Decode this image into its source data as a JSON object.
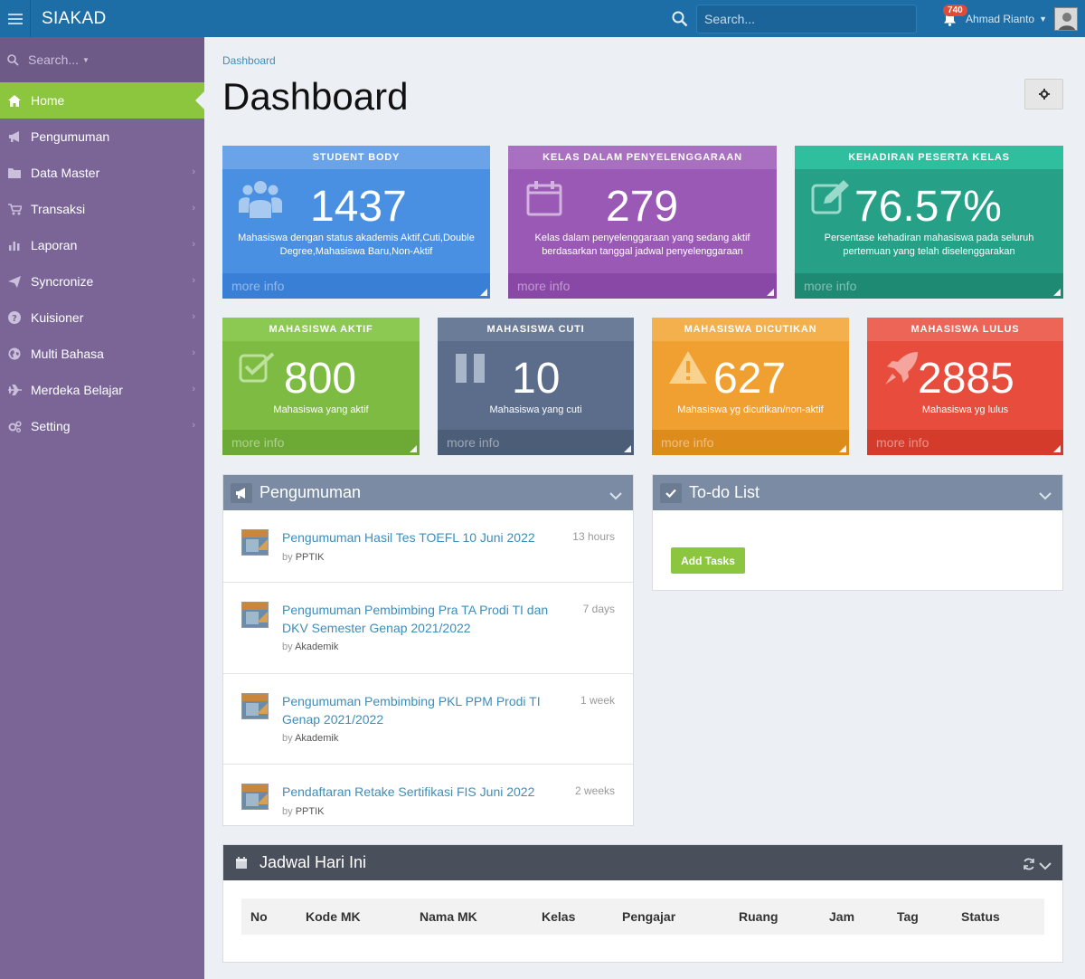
{
  "app": {
    "brand": "SIAKAD"
  },
  "topbar": {
    "search_placeholder": "Search...",
    "notification_count": "740",
    "user_name": "Ahmad Rianto"
  },
  "sidebar": {
    "search_placeholder": "Search...",
    "items": [
      {
        "label": "Home",
        "icon": "home-icon",
        "active": true
      },
      {
        "label": "Pengumuman",
        "icon": "bullhorn-icon"
      },
      {
        "label": "Data Master",
        "icon": "folder-icon"
      },
      {
        "label": "Transaksi",
        "icon": "cart-icon"
      },
      {
        "label": "Laporan",
        "icon": "bar-chart-icon"
      },
      {
        "label": "Syncronize",
        "icon": "paper-plane-icon"
      },
      {
        "label": "Kuisioner",
        "icon": "question-icon"
      },
      {
        "label": "Multi Bahasa",
        "icon": "globe-icon"
      },
      {
        "label": "Merdeka Belajar",
        "icon": "plane-icon"
      },
      {
        "label": "Setting",
        "icon": "cogs-icon"
      }
    ]
  },
  "page": {
    "breadcrumb": "Dashboard",
    "title": "Dashboard"
  },
  "stats": {
    "student_body": {
      "header": "STUDENT BODY",
      "value": "1437",
      "desc": "Mahasiswa dengan status akademis Aktif,Cuti,Double Degree,Mahasiswa Baru,Non-Aktif",
      "footer": "more info",
      "color": "#4a90e2"
    },
    "kelas": {
      "header": "KELAS DALAM PENYELENGGARAAN",
      "value": "279",
      "desc": "Kelas dalam penyelenggaraan yang sedang aktif berdasarkan tanggal jadwal penyelenggaraan",
      "footer": "more info",
      "color": "#9b59b6"
    },
    "kehadiran": {
      "header": "KEHADIRAN PESERTA KELAS",
      "value": "76.57%",
      "desc": "Persentase kehadiran mahasiswa pada seluruh pertemuan yang telah diselenggarakan",
      "footer": "more info",
      "color": "#26a087"
    },
    "aktif": {
      "header": "MAHASISWA AKTIF",
      "value": "800",
      "desc": "Mahasiswa yang aktif",
      "footer": "more info",
      "color": "#7dbb42"
    },
    "cuti": {
      "header": "MAHASISWA CUTI",
      "value": "10",
      "desc": "Mahasiswa yang cuti",
      "footer": "more info",
      "color": "#5b6d8a"
    },
    "dicutikan": {
      "header": "MAHASISWA DICUTIKAN",
      "value": "627",
      "desc": "Mahasiswa yg dicutikan/non-aktif",
      "footer": "more info",
      "color": "#f0a030"
    },
    "lulus": {
      "header": "MAHASISWA LULUS",
      "value": "2885",
      "desc": "Mahasiswa yg lulus",
      "footer": "more info",
      "color": "#e74c3c"
    }
  },
  "pengumuman": {
    "title": "Pengumuman",
    "items": [
      {
        "title": "Pengumuman Hasil Tes TOEFL 10 Juni 2022",
        "time": "13 hours",
        "by_prefix": "by",
        "by": "PPTIK"
      },
      {
        "title": "Pengumuman Pembimbing Pra TA Prodi TI dan DKV Semester Genap 2021/2022",
        "time": "7 days",
        "by_prefix": "by",
        "by": "Akademik"
      },
      {
        "title": "Pengumuman Pembimbing PKL PPM Prodi TI Genap 2021/2022",
        "time": "1 week",
        "by_prefix": "by",
        "by": "Akademik"
      },
      {
        "title": "Pendaftaran Retake Sertifikasi FIS Juni 2022",
        "time": "2 weeks",
        "by_prefix": "by",
        "by": "PPTIK"
      }
    ]
  },
  "todo": {
    "title": "To-do List",
    "add_label": "Add Tasks"
  },
  "jadwal": {
    "title": "Jadwal Hari Ini",
    "columns": [
      "No",
      "Kode MK",
      "Nama MK",
      "Kelas",
      "Pengajar",
      "Ruang",
      "Jam",
      "Tag",
      "Status"
    ]
  }
}
